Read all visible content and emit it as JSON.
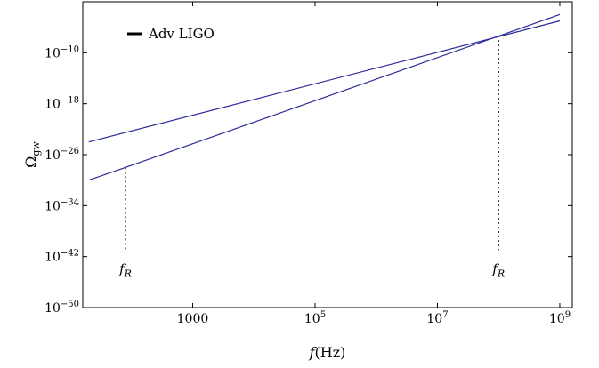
{
  "chart_data": {
    "type": "line",
    "title": "",
    "xlabel": "f (Hz)",
    "ylabel": "Ω_gw",
    "x_scale": "log",
    "y_scale": "log",
    "xlim": [
      16,
      1600000000.0
    ],
    "ylim": [
      1e-50,
      0.01
    ],
    "x_ticks": [
      {
        "value": 1000,
        "label": "1000"
      },
      {
        "value": 100000.0,
        "base": "10",
        "exp": "5"
      },
      {
        "value": 10000000.0,
        "base": "10",
        "exp": "7"
      },
      {
        "value": 1000000000.0,
        "base": "10",
        "exp": "9"
      }
    ],
    "y_ticks": [
      {
        "value": 1e-10,
        "base": "10",
        "exp": "−10"
      },
      {
        "value": 1e-18,
        "base": "10",
        "exp": "−18"
      },
      {
        "value": 1e-26,
        "base": "10",
        "exp": "−26"
      },
      {
        "value": 1e-34,
        "base": "10",
        "exp": "−34"
      },
      {
        "value": 1e-42,
        "base": "10",
        "exp": "−42"
      },
      {
        "value": 1e-50,
        "base": "10",
        "exp": "−50"
      }
    ],
    "series": [
      {
        "color": "#2b2b9a",
        "points": [
          [
            20,
            1e-24
          ],
          [
            1000000000.0,
            1e-05
          ]
        ]
      },
      {
        "color": "#2b2b9a",
        "points": [
          [
            20,
            1e-30
          ],
          [
            80,
            1e-28
          ],
          [
            1000000000.0,
            0.0001
          ]
        ]
      }
    ],
    "annotations": [
      {
        "label": "f",
        "sub": "R",
        "x": 80,
        "y_top": 1e-28,
        "y_bottom": 1e-41
      },
      {
        "label": "f",
        "sub": "R",
        "x": 100000000.0,
        "y_top": 1e-08,
        "y_bottom": 1e-41
      }
    ],
    "legend": {
      "position": "top-left",
      "entries": [
        {
          "label": "Adv LIGO",
          "color": "#000000"
        }
      ]
    },
    "grid": false
  }
}
